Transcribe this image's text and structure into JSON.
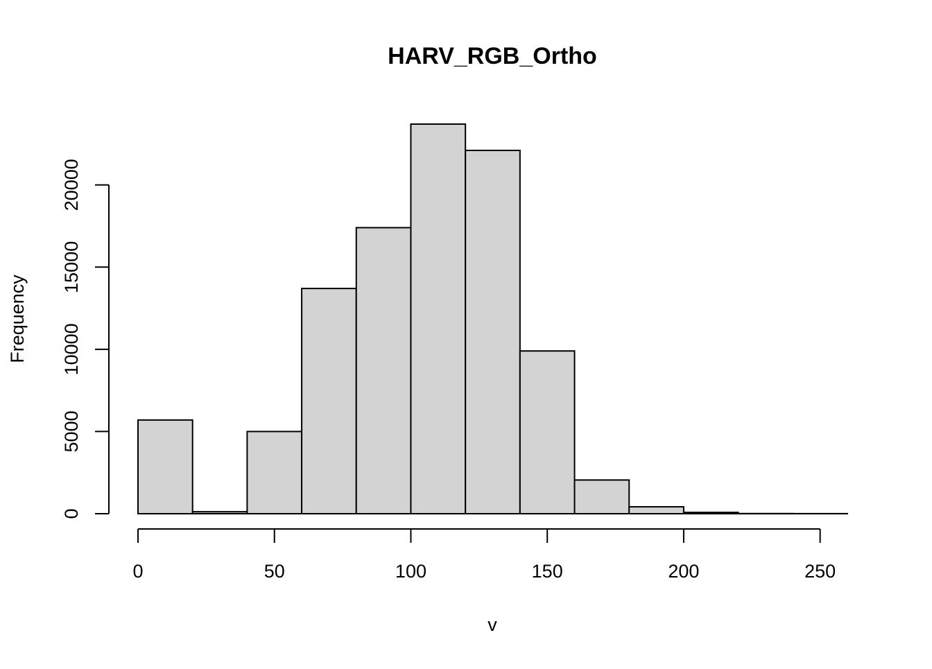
{
  "chart_data": {
    "type": "bar",
    "title": "HARV_RGB_Ortho",
    "xlabel": "v",
    "ylabel": "Frequency",
    "bins": [
      {
        "start": 0,
        "end": 20,
        "count": 5700
      },
      {
        "start": 20,
        "end": 40,
        "count": 120
      },
      {
        "start": 40,
        "end": 60,
        "count": 5000
      },
      {
        "start": 60,
        "end": 80,
        "count": 13700
      },
      {
        "start": 80,
        "end": 100,
        "count": 17400
      },
      {
        "start": 100,
        "end": 120,
        "count": 23700
      },
      {
        "start": 120,
        "end": 140,
        "count": 22100
      },
      {
        "start": 140,
        "end": 160,
        "count": 9900
      },
      {
        "start": 160,
        "end": 180,
        "count": 2050
      },
      {
        "start": 180,
        "end": 200,
        "count": 420
      },
      {
        "start": 200,
        "end": 220,
        "count": 80
      },
      {
        "start": 220,
        "end": 240,
        "count": 10
      },
      {
        "start": 240,
        "end": 260,
        "count": 5
      }
    ],
    "xticks": [
      0,
      50,
      100,
      150,
      200,
      250
    ],
    "yticks": [
      0,
      5000,
      10000,
      15000,
      20000
    ],
    "xlim": [
      0,
      260
    ],
    "ylim": [
      0,
      23700
    ],
    "grid": false,
    "colors": {
      "bar_fill": "#d3d3d3",
      "bar_stroke": "#000000",
      "axis": "#000000"
    }
  }
}
